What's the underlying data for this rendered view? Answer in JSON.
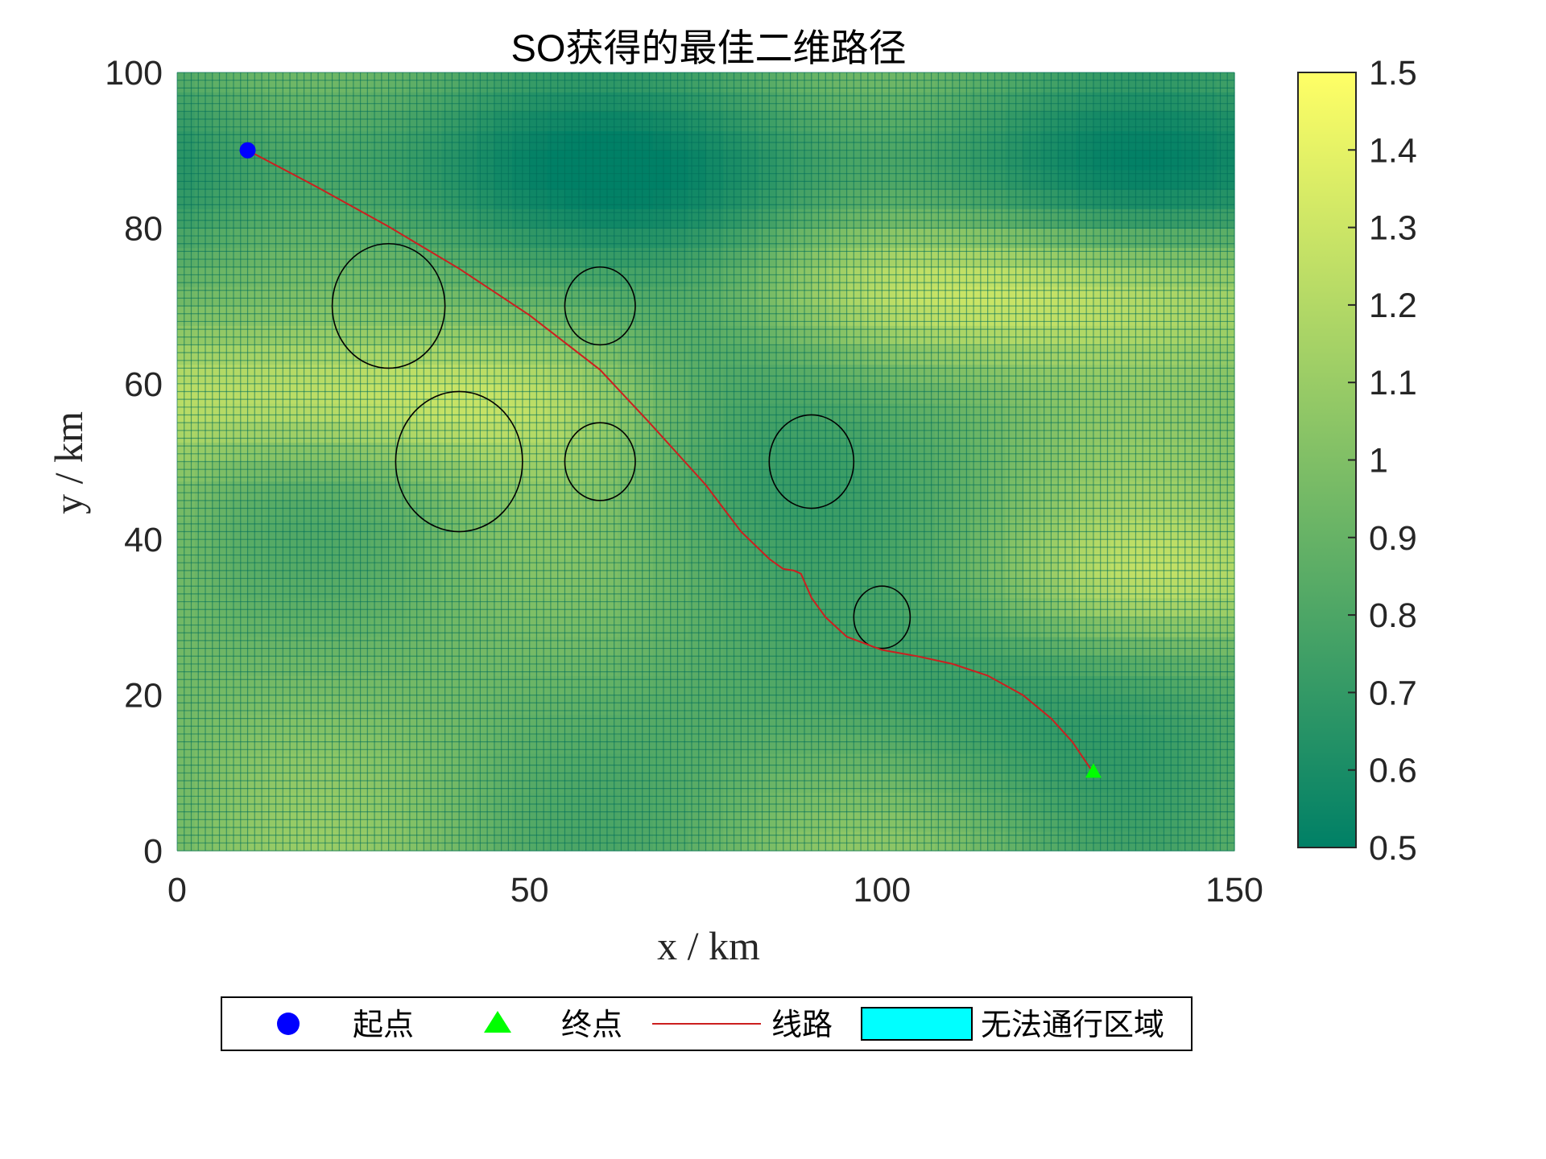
{
  "chart_data": {
    "type": "heatmap",
    "title": "SO获得的最佳二维路径",
    "xlabel": "x / km",
    "ylabel": "y / km",
    "xlim": [
      0,
      150
    ],
    "ylim": [
      0,
      100
    ],
    "xticks": [
      "0",
      "50",
      "100",
      "150"
    ],
    "yticks": [
      "0",
      "20",
      "40",
      "60",
      "80",
      "100"
    ],
    "grid": true,
    "colormap": "summer",
    "colorbar": {
      "range": [
        0.5,
        1.5
      ],
      "ticks": [
        "0.5",
        "0.6",
        "0.7",
        "0.8",
        "0.9",
        "1",
        "1.1",
        "1.2",
        "1.3",
        "1.4",
        "1.5"
      ],
      "color_low": "#008066",
      "color_high": "#ffff66"
    },
    "start": {
      "x": 10,
      "y": 90,
      "color": "#0000ff"
    },
    "goal": {
      "x": 130,
      "y": 10,
      "color": "#00ff00"
    },
    "obstacles": [
      {
        "cx": 30,
        "cy": 70,
        "r": 8
      },
      {
        "cx": 60,
        "cy": 70,
        "r": 5
      },
      {
        "cx": 40,
        "cy": 50,
        "r": 9
      },
      {
        "cx": 60,
        "cy": 50,
        "r": 5
      },
      {
        "cx": 90,
        "cy": 50,
        "r": 6
      },
      {
        "cx": 100,
        "cy": 30,
        "r": 4
      }
    ],
    "path": {
      "color": "#cc1f1f",
      "points": [
        [
          10,
          90
        ],
        [
          20,
          85.2
        ],
        [
          30,
          80.2
        ],
        [
          40,
          74.8
        ],
        [
          50,
          68.8
        ],
        [
          60,
          61.8
        ],
        [
          67,
          55
        ],
        [
          75,
          47
        ],
        [
          80,
          41
        ],
        [
          84,
          37.5
        ],
        [
          86,
          36.2
        ],
        [
          87.5,
          36
        ],
        [
          88.5,
          35.6
        ],
        [
          90,
          32.5
        ],
        [
          92,
          30
        ],
        [
          95,
          27.5
        ],
        [
          100,
          25.8
        ],
        [
          105,
          25
        ],
        [
          110,
          24
        ],
        [
          115,
          22.5
        ],
        [
          120,
          20
        ],
        [
          124,
          17
        ],
        [
          127,
          14
        ],
        [
          130,
          10
        ]
      ]
    },
    "legend": {
      "placement": "bottom-center",
      "entries": [
        "起点",
        "终点",
        "线路",
        "无法通行区域"
      ],
      "fill_color": "#00ffff"
    }
  }
}
